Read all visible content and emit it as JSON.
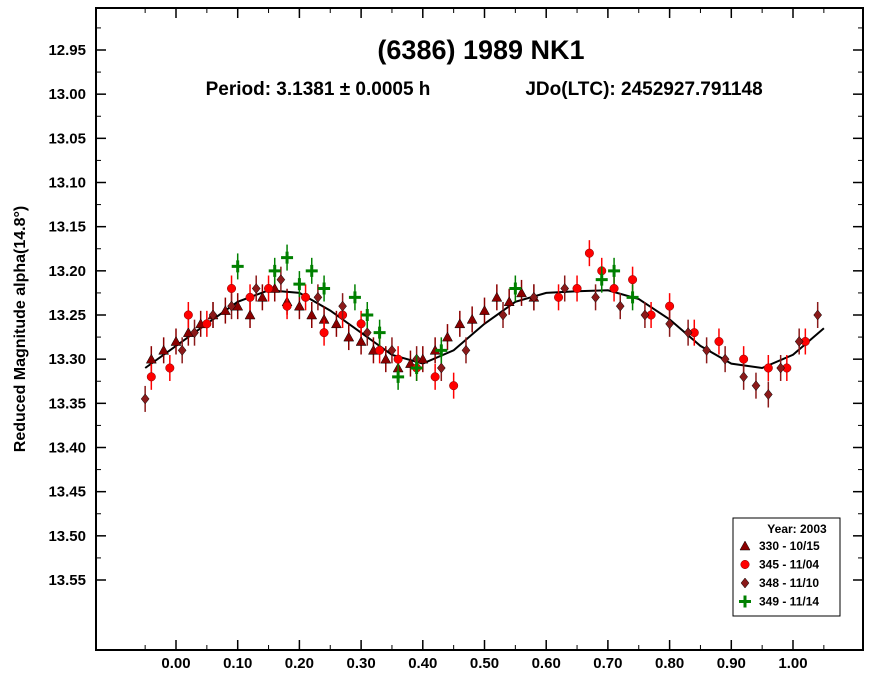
{
  "chart_data": {
    "type": "scatter",
    "title": "(6386) 1989 NK1",
    "subtitle_period": "Period: 3.1381 ± 0.0005 h",
    "subtitle_epoch": "JDo(LTC): 2452927.791148",
    "ylabel": "Reduced Magnitude alpha(14.8°)",
    "xlabel": "",
    "xlim": [
      -0.06,
      1.08
    ],
    "ylim": [
      13.6,
      12.9
    ],
    "y_inverted": true,
    "x_ticks": [
      "0.00",
      "0.10",
      "0.20",
      "0.30",
      "0.40",
      "0.50",
      "0.60",
      "0.70",
      "0.80",
      "0.90",
      "1.00"
    ],
    "y_ticks": [
      "12.95",
      "13.00",
      "13.05",
      "13.10",
      "13.15",
      "13.20",
      "13.25",
      "13.30",
      "13.35",
      "13.40",
      "13.45",
      "13.50",
      "13.55"
    ],
    "grid": false,
    "legend_position": "bottom-right",
    "legend_title": "Year: 2003",
    "fit_curve": {
      "x": [
        -0.05,
        0.0,
        0.05,
        0.1,
        0.15,
        0.2,
        0.25,
        0.3,
        0.35,
        0.4,
        0.45,
        0.5,
        0.55,
        0.6,
        0.65,
        0.7,
        0.75,
        0.8,
        0.85,
        0.9,
        0.95,
        1.0,
        1.05
      ],
      "y": [
        13.31,
        13.285,
        13.26,
        13.235,
        13.222,
        13.225,
        13.245,
        13.27,
        13.295,
        13.305,
        13.29,
        13.26,
        13.235,
        13.225,
        13.223,
        13.222,
        13.232,
        13.255,
        13.285,
        13.305,
        13.31,
        13.295,
        13.265
      ]
    },
    "series": [
      {
        "name": "330 - 10/15",
        "marker": "triangle",
        "color": "#8b0000",
        "x": [
          -0.04,
          -0.02,
          0.0,
          0.02,
          0.04,
          0.06,
          0.08,
          0.1,
          0.12,
          0.14,
          0.16,
          0.18,
          0.2,
          0.22,
          0.24,
          0.26,
          0.28,
          0.3,
          0.32,
          0.34,
          0.36,
          0.38,
          0.4,
          0.42,
          0.44,
          0.46,
          0.48,
          0.5,
          0.52,
          0.54,
          0.56,
          0.58
        ],
        "y": [
          13.3,
          13.29,
          13.28,
          13.27,
          13.26,
          13.25,
          13.245,
          13.24,
          13.25,
          13.23,
          13.22,
          13.235,
          13.24,
          13.25,
          13.255,
          13.26,
          13.275,
          13.28,
          13.29,
          13.3,
          13.31,
          13.305,
          13.3,
          13.29,
          13.275,
          13.26,
          13.255,
          13.245,
          13.23,
          13.235,
          13.225,
          13.23
        ]
      },
      {
        "name": "345 - 11/04",
        "marker": "circle",
        "color": "#ff0000",
        "x": [
          -0.04,
          -0.01,
          0.02,
          0.05,
          0.09,
          0.12,
          0.15,
          0.18,
          0.21,
          0.24,
          0.27,
          0.3,
          0.33,
          0.36,
          0.39,
          0.42,
          0.45,
          0.62,
          0.65,
          0.67,
          0.69,
          0.71,
          0.74,
          0.77,
          0.8,
          0.84,
          0.88,
          0.92,
          0.96,
          0.99,
          1.02
        ],
        "y": [
          13.32,
          13.31,
          13.25,
          13.26,
          13.22,
          13.23,
          13.22,
          13.24,
          13.23,
          13.27,
          13.25,
          13.26,
          13.29,
          13.3,
          13.31,
          13.32,
          13.33,
          13.23,
          13.22,
          13.18,
          13.2,
          13.22,
          13.21,
          13.25,
          13.24,
          13.27,
          13.28,
          13.3,
          13.31,
          13.31,
          13.28
        ]
      },
      {
        "name": "348 - 11/10",
        "marker": "diamond",
        "color": "#8b1a1a",
        "x": [
          -0.05,
          0.01,
          0.03,
          0.06,
          0.09,
          0.13,
          0.17,
          0.23,
          0.27,
          0.31,
          0.35,
          0.39,
          0.43,
          0.47,
          0.53,
          0.58,
          0.63,
          0.68,
          0.72,
          0.76,
          0.8,
          0.83,
          0.86,
          0.89,
          0.92,
          0.94,
          0.96,
          0.98,
          1.01,
          1.04
        ],
        "y": [
          13.345,
          13.29,
          13.27,
          13.25,
          13.24,
          13.22,
          13.21,
          13.23,
          13.24,
          13.27,
          13.29,
          13.3,
          13.31,
          13.29,
          13.25,
          13.23,
          13.22,
          13.23,
          13.24,
          13.25,
          13.26,
          13.27,
          13.29,
          13.3,
          13.32,
          13.33,
          13.34,
          13.31,
          13.28,
          13.25
        ]
      },
      {
        "name": "349 - 11/14",
        "marker": "cross",
        "color": "#008000",
        "x": [
          0.1,
          0.16,
          0.18,
          0.2,
          0.22,
          0.24,
          0.29,
          0.31,
          0.33,
          0.36,
          0.39,
          0.43,
          0.55,
          0.69,
          0.71,
          0.74
        ],
        "y": [
          13.195,
          13.2,
          13.185,
          13.215,
          13.2,
          13.22,
          13.23,
          13.25,
          13.27,
          13.32,
          13.31,
          13.29,
          13.22,
          13.21,
          13.2,
          13.23
        ]
      }
    ]
  }
}
